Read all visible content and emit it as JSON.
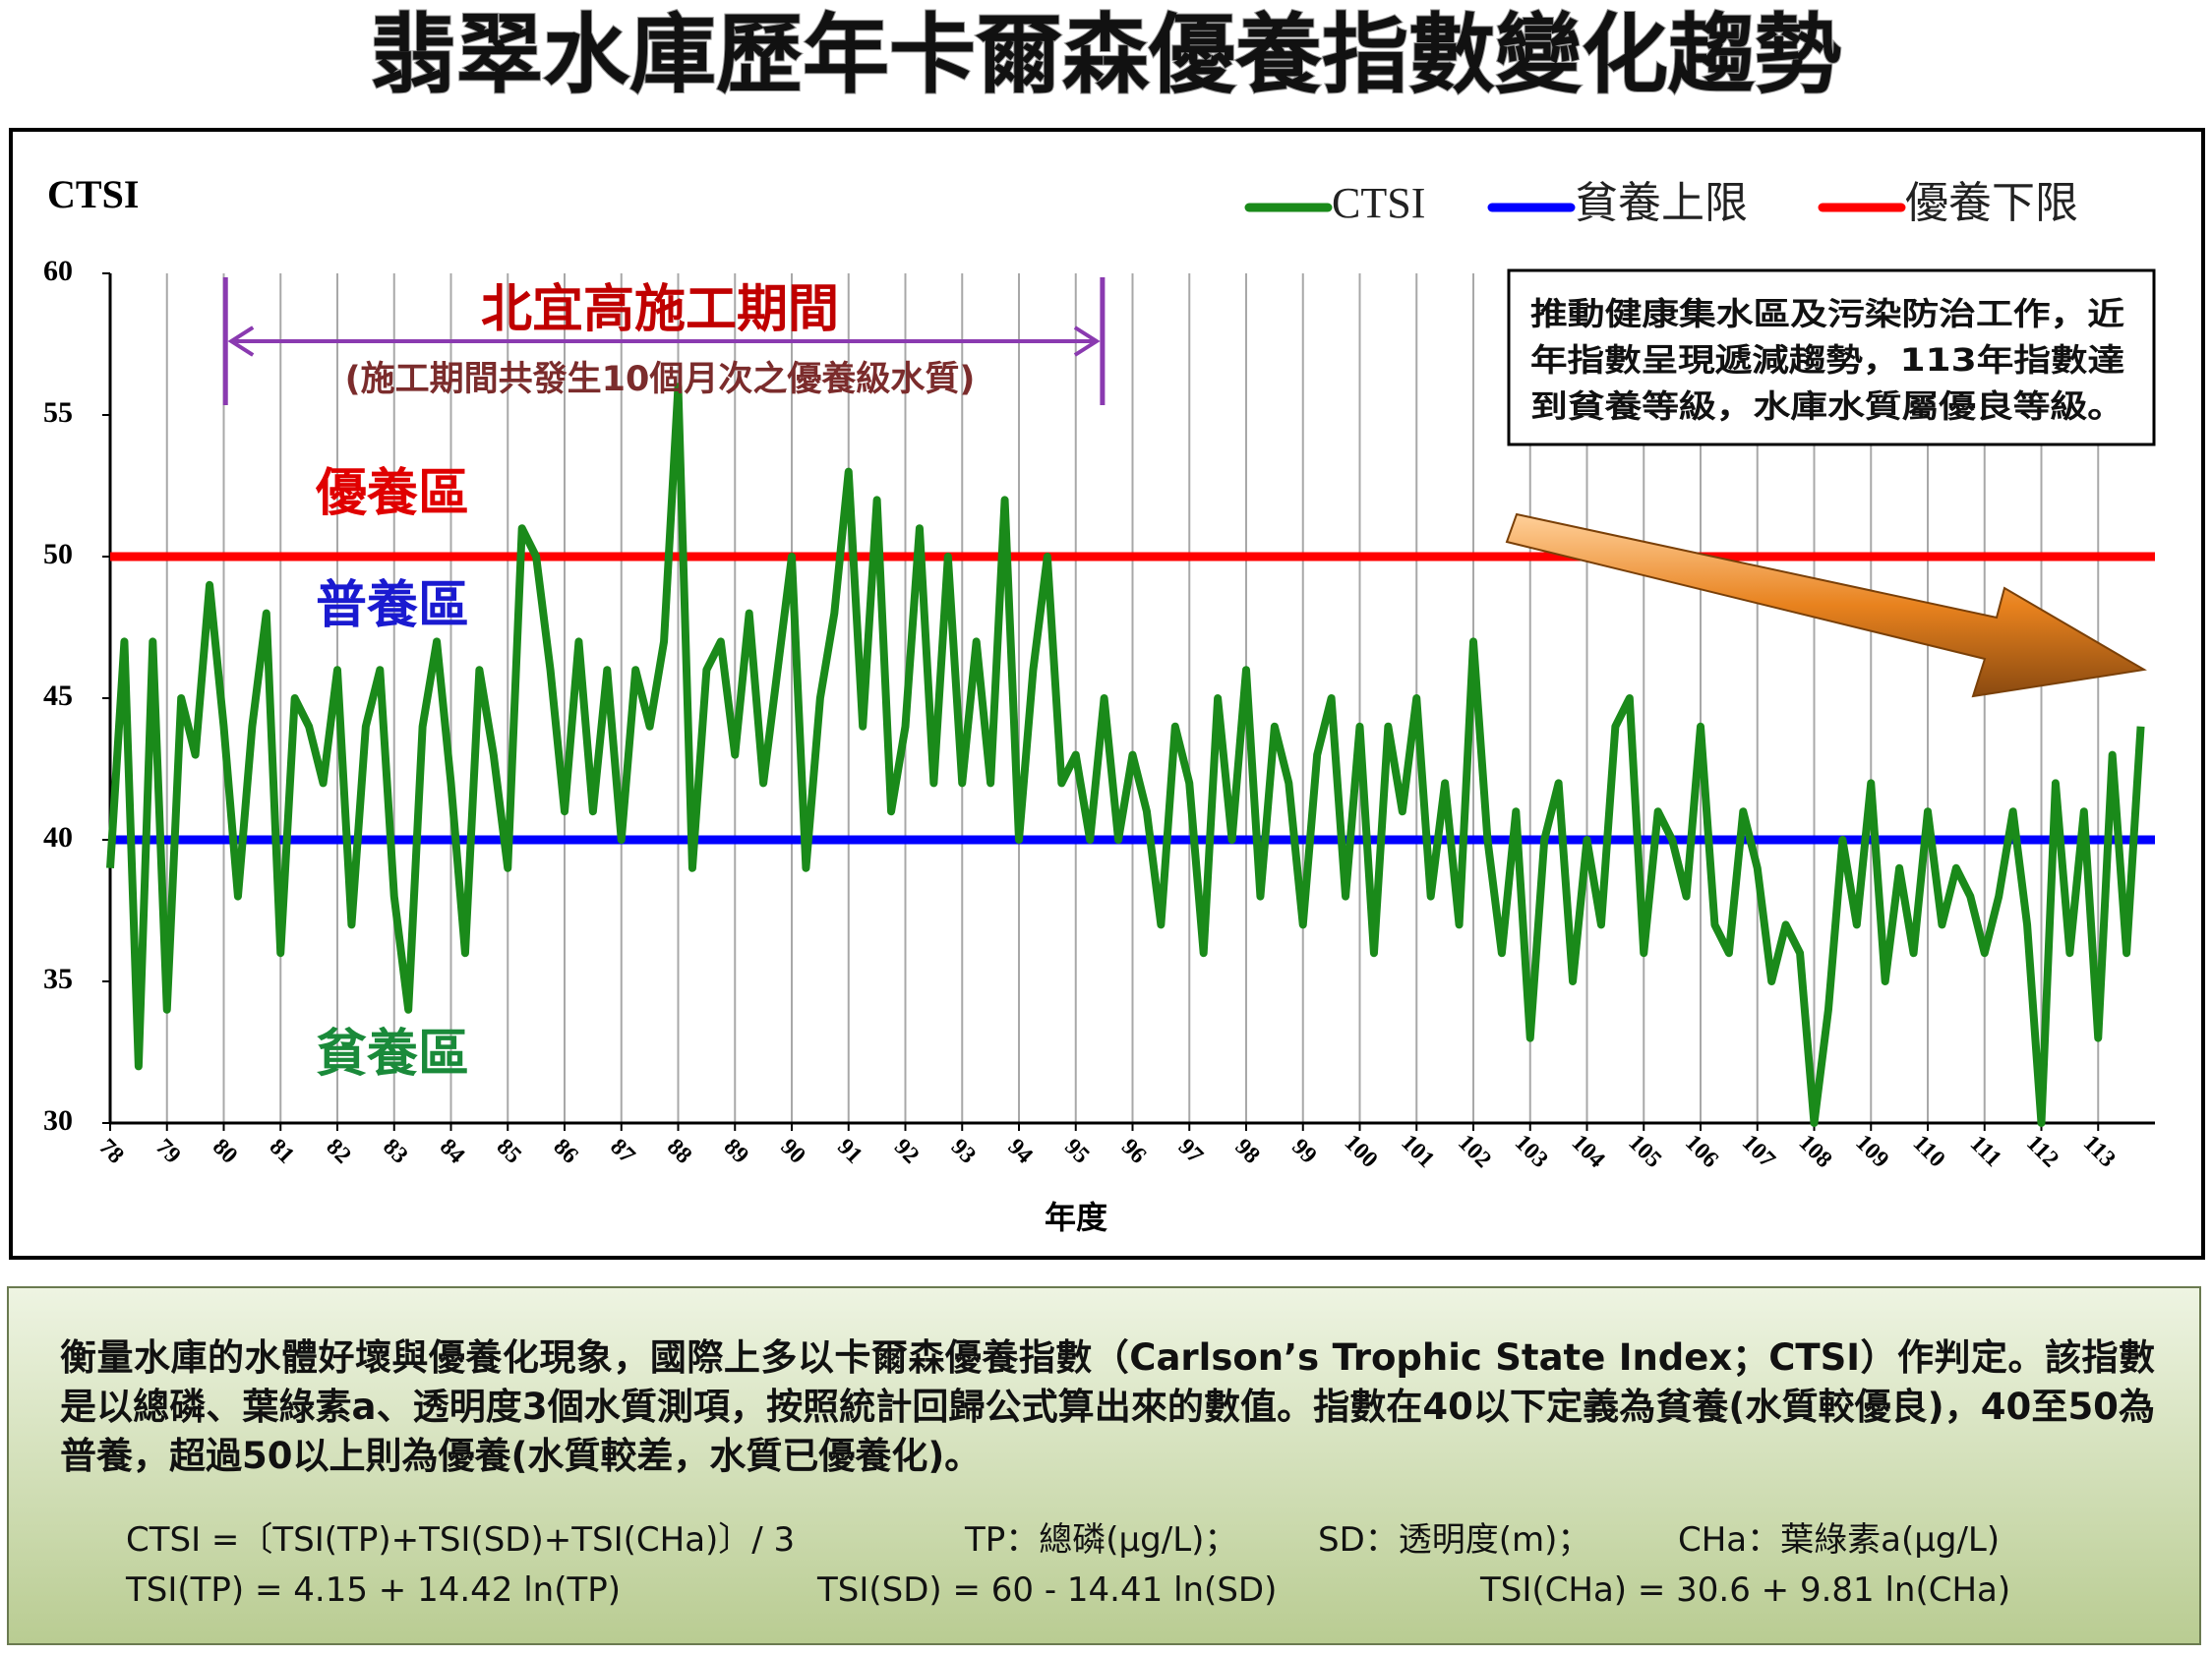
{
  "chart_data": {
    "type": "line",
    "title": "翡翠水庫歷年卡爾森優養指數變化趨勢",
    "y_label": "CTSI",
    "x_label": "年度",
    "xlim": [
      78,
      114
    ],
    "ylim": [
      30,
      60
    ],
    "xticks": [
      78,
      79,
      80,
      81,
      82,
      83,
      84,
      85,
      86,
      87,
      88,
      89,
      90,
      91,
      92,
      93,
      94,
      95,
      96,
      97,
      98,
      99,
      100,
      101,
      102,
      103,
      104,
      105,
      106,
      107,
      108,
      109,
      110,
      111,
      112,
      113
    ],
    "yticks": [
      30,
      35,
      40,
      45,
      50,
      55,
      60
    ],
    "grid": "x",
    "series": [
      {
        "name": "CTSI",
        "color": "#1a8a1a",
        "x": [
          78,
          78.25,
          78.5,
          78.75,
          79,
          79.25,
          79.5,
          79.75,
          80,
          80.25,
          80.5,
          80.75,
          81,
          81.25,
          81.5,
          81.75,
          82,
          82.25,
          82.5,
          82.75,
          83,
          83.25,
          83.5,
          83.75,
          84,
          84.25,
          84.5,
          84.75,
          85,
          85.25,
          85.5,
          85.75,
          86,
          86.25,
          86.5,
          86.75,
          87,
          87.25,
          87.5,
          87.75,
          88,
          88.25,
          88.5,
          88.75,
          89,
          89.25,
          89.5,
          89.75,
          90,
          90.25,
          90.5,
          90.75,
          91,
          91.25,
          91.5,
          91.75,
          92,
          92.25,
          92.5,
          92.75,
          93,
          93.25,
          93.5,
          93.75,
          94,
          94.25,
          94.5,
          94.75,
          95,
          95.25,
          95.5,
          95.75,
          96,
          96.25,
          96.5,
          96.75,
          97,
          97.25,
          97.5,
          97.75,
          98,
          98.25,
          98.5,
          98.75,
          99,
          99.25,
          99.5,
          99.75,
          100,
          100.25,
          100.5,
          100.75,
          101,
          101.25,
          101.5,
          101.75,
          102,
          102.25,
          102.5,
          102.75,
          103,
          103.25,
          103.5,
          103.75,
          104,
          104.25,
          104.5,
          104.75,
          105,
          105.25,
          105.5,
          105.75,
          106,
          106.25,
          106.5,
          106.75,
          107,
          107.25,
          107.5,
          107.75,
          108,
          108.25,
          108.5,
          108.75,
          109,
          109.25,
          109.5,
          109.75,
          110,
          110.25,
          110.5,
          110.75,
          111,
          111.25,
          111.5,
          111.75,
          112,
          112.25,
          112.5,
          112.75,
          113,
          113.25,
          113.5,
          113.75
        ],
        "values": [
          39,
          47,
          32,
          47,
          34,
          45,
          43,
          49,
          44,
          38,
          44,
          48,
          36,
          45,
          44,
          42,
          46,
          37,
          44,
          46,
          38,
          34,
          44,
          47,
          42,
          36,
          46,
          43,
          39,
          51,
          50,
          46,
          41,
          47,
          41,
          46,
          40,
          46,
          44,
          47,
          56,
          39,
          46,
          47,
          43,
          48,
          42,
          46,
          50,
          39,
          45,
          48,
          53,
          44,
          52,
          41,
          44,
          51,
          42,
          50,
          42,
          47,
          42,
          52,
          40,
          46,
          50,
          42,
          43,
          40,
          45,
          40,
          43,
          41,
          37,
          44,
          42,
          36,
          45,
          40,
          46,
          38,
          44,
          42,
          37,
          43,
          45,
          38,
          44,
          36,
          44,
          41,
          45,
          38,
          42,
          37,
          47,
          40,
          36,
          41,
          33,
          40,
          42,
          35,
          40,
          37,
          44,
          45,
          36,
          41,
          40,
          38,
          44,
          37,
          36,
          41,
          39,
          35,
          37,
          36,
          30,
          34,
          40,
          37,
          42,
          35,
          39,
          36,
          41,
          37,
          39,
          38,
          36,
          38,
          41,
          37,
          30,
          42,
          36,
          41,
          33,
          43,
          36,
          44
        ]
      }
    ],
    "reference_lines": [
      {
        "name": "貧養上限",
        "color": "#0000ff",
        "value": 40
      },
      {
        "name": "優養下限",
        "color": "#ff0000",
        "value": 50
      }
    ],
    "zones": [
      {
        "label": "優養區",
        "color": "#e00000"
      },
      {
        "label": "普養區",
        "color": "#1a1ad0"
      },
      {
        "label": "貧養區",
        "color": "#1a8a3a"
      }
    ],
    "construction": {
      "label": "北宜高施工期間",
      "note": "(施工期間共發生10個月次之優養級水質)",
      "span": [
        80.03,
        95.47
      ]
    },
    "note": [
      "推動健康集水區及污染防治工作，近",
      "年指數呈現遞減趨勢，113年指數達",
      "到貧養等級，水庫水質屬優良等級。"
    ]
  },
  "panel": {
    "description": "衡量水庫的水體好壞與優養化現象，國際上多以卡爾森優養指數（Carlson’s Trophic State Index；CTSI）作判定。該指數是以總磷、葉綠素a、透明度3個水質測項，按照統計回歸公式算出來的數值。指數在40以下定義為貧養(水質較優良)，40至50為普養，超過50以上則為優養(水質較差，水質已優養化)。",
    "formulas": [
      [
        "CTSI =〔TSI(TP)+TSI(SD)+TSI(CHa)〕/ 3",
        "TP：總磷(μg/L)；",
        "SD：透明度(m)；",
        "CHa：葉綠素a(μg/L)"
      ],
      [
        "TSI(TP) = 4.15 + 14.42 ln(TP)",
        "TSI(SD) = 60 - 14.41 ln(SD)",
        "TSI(CHa) = 30.6 + 9.81 ln(CHa)"
      ]
    ]
  }
}
